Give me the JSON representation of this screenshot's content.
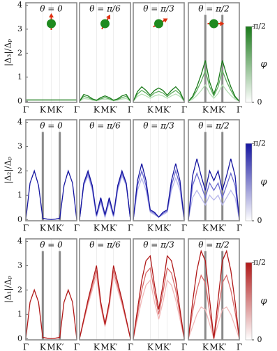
{
  "chart_data": [
    {
      "type": "line",
      "title": "θ = 0",
      "ylabel": "|Δ₃|/Δₚ",
      "ylim": [
        -0.05,
        4.1
      ],
      "yticks": [
        0,
        1,
        2,
        3,
        4
      ],
      "x": [
        0,
        0.083,
        0.167,
        0.25,
        0.333,
        0.417,
        0.5,
        0.583,
        0.667,
        0.75,
        0.833,
        0.917,
        1
      ],
      "xlim": [
        0,
        1
      ],
      "xticks": [
        {
          "value": 0,
          "label": "Γ"
        },
        {
          "value": 0.333,
          "label": "K"
        },
        {
          "value": 0.5,
          "label": "M"
        },
        {
          "value": 0.667,
          "label": "K′"
        },
        {
          "value": 1,
          "label": "Γ"
        }
      ],
      "series": [
        {
          "color": "#1a7a1a",
          "values": [
            0.05,
            0.05,
            0.05,
            0.05,
            0.05,
            0.05,
            0.05,
            0.05,
            0.05,
            0.05,
            0.05,
            0.05,
            0.05
          ]
        }
      ]
    },
    {
      "type": "line",
      "title": "θ = π/6",
      "ylim": [
        -0.05,
        4.1
      ],
      "x": [
        0,
        0.083,
        0.167,
        0.25,
        0.333,
        0.417,
        0.5,
        0.583,
        0.667,
        0.75,
        0.833,
        0.917,
        1
      ],
      "xlim": [
        0,
        1
      ],
      "xticks": [
        {
          "value": 0.333,
          "label": "K"
        },
        {
          "value": 0.5,
          "label": "M"
        },
        {
          "value": 0.667,
          "label": "K′"
        },
        {
          "value": 1,
          "label": "Γ"
        }
      ],
      "series": [
        {
          "color": "#b5deb5",
          "values": [
            0,
            0.11,
            0.09,
            0.04,
            0.02,
            0.06,
            0.09,
            0.06,
            0.02,
            0.04,
            0.09,
            0.11,
            0
          ]
        },
        {
          "color": "#5fae5f",
          "values": [
            0,
            0.2,
            0.15,
            0.07,
            0.03,
            0.1,
            0.15,
            0.1,
            0.03,
            0.07,
            0.15,
            0.2,
            0
          ]
        },
        {
          "color": "#1a7a1a",
          "values": [
            0,
            0.28,
            0.22,
            0.1,
            0.04,
            0.15,
            0.22,
            0.15,
            0.04,
            0.1,
            0.22,
            0.28,
            0
          ]
        }
      ]
    },
    {
      "type": "line",
      "title": "θ = π/3",
      "ylim": [
        -0.05,
        4.1
      ],
      "x": [
        0,
        0.083,
        0.167,
        0.25,
        0.333,
        0.417,
        0.5,
        0.583,
        0.667,
        0.75,
        0.833,
        0.917,
        1
      ],
      "xlim": [
        0,
        1
      ],
      "xticks": [
        {
          "value": 0.333,
          "label": "K"
        },
        {
          "value": 0.5,
          "label": "M"
        },
        {
          "value": 0.667,
          "label": "K′"
        },
        {
          "value": 1,
          "label": "Γ"
        }
      ],
      "series": [
        {
          "color": "#b5deb5",
          "values": [
            0,
            0.2,
            0.3,
            0.22,
            0.12,
            0.22,
            0.27,
            0.22,
            0.12,
            0.22,
            0.3,
            0.2,
            0
          ]
        },
        {
          "color": "#5fae5f",
          "values": [
            0,
            0.3,
            0.45,
            0.34,
            0.19,
            0.34,
            0.41,
            0.34,
            0.19,
            0.34,
            0.45,
            0.3,
            0
          ]
        },
        {
          "color": "#1a7a1a",
          "values": [
            0,
            0.4,
            0.6,
            0.45,
            0.25,
            0.45,
            0.55,
            0.45,
            0.25,
            0.45,
            0.6,
            0.4,
            0
          ]
        }
      ]
    },
    {
      "type": "line",
      "title": "θ = π/2",
      "ylim": [
        -0.05,
        4.1
      ],
      "vlines": [
        0.333,
        0.667
      ],
      "x": [
        0,
        0.083,
        0.167,
        0.25,
        0.333,
        0.417,
        0.5,
        0.583,
        0.667,
        0.75,
        0.833,
        0.917,
        1
      ],
      "xlim": [
        0,
        1
      ],
      "xticks": [
        {
          "value": 0.333,
          "label": "K"
        },
        {
          "value": 0.5,
          "label": "M"
        },
        {
          "value": 0.667,
          "label": "K′"
        },
        {
          "value": 1,
          "label": "Γ"
        }
      ],
      "series": [
        {
          "color": "#b5deb5",
          "values": [
            0,
            0.08,
            0.24,
            0.44,
            0.68,
            0.32,
            0.12,
            0.32,
            0.68,
            0.44,
            0.24,
            0.08,
            0
          ]
        },
        {
          "color": "#5fae5f",
          "values": [
            0,
            0.15,
            0.45,
            0.82,
            1.27,
            0.6,
            0.22,
            0.6,
            1.27,
            0.82,
            0.45,
            0.15,
            0
          ]
        },
        {
          "color": "#1a7a1a",
          "values": [
            0,
            0.2,
            0.6,
            1.1,
            1.7,
            0.8,
            0.3,
            0.8,
            1.7,
            1.1,
            0.6,
            0.2,
            0
          ]
        }
      ],
      "colorbar": {
        "label": "φ",
        "lim": [
          0,
          1.5708
        ],
        "ticks": [
          0,
          {
            "value": 1.5708,
            "label": "π/2"
          }
        ],
        "color": "#1a7a1a"
      }
    },
    {
      "type": "line",
      "title": "θ = 0",
      "ylabel": "|Δ₂|/Δₚ",
      "ylim": [
        -0.05,
        4.1
      ],
      "yticks": [
        0,
        1,
        2,
        3,
        4
      ],
      "vlines": [
        0.333,
        0.667
      ],
      "x": [
        0,
        0.083,
        0.167,
        0.25,
        0.333,
        0.417,
        0.5,
        0.583,
        0.667,
        0.75,
        0.833,
        0.917,
        1
      ],
      "xlim": [
        0,
        1
      ],
      "xticks": [
        {
          "value": 0,
          "label": "Γ"
        },
        {
          "value": 0.333,
          "label": "K"
        },
        {
          "value": 0.5,
          "label": "M"
        },
        {
          "value": 0.667,
          "label": "K′"
        },
        {
          "value": 1,
          "label": "Γ"
        }
      ],
      "series": [
        {
          "color": "#1515a0",
          "values": [
            0,
            1.5,
            2,
            1.4,
            0.05,
            0.02,
            0,
            0.02,
            0.05,
            1.4,
            2,
            1.5,
            0
          ]
        }
      ]
    },
    {
      "type": "line",
      "title": "θ = π/6",
      "ylim": [
        -0.05,
        4.1
      ],
      "x": [
        0,
        0.083,
        0.167,
        0.25,
        0.333,
        0.417,
        0.5,
        0.583,
        0.667,
        0.75,
        0.833,
        0.917,
        1
      ],
      "xlim": [
        0,
        1
      ],
      "xticks": [
        {
          "value": 0.333,
          "label": "K"
        },
        {
          "value": 0.5,
          "label": "M"
        },
        {
          "value": 0.667,
          "label": "K′"
        },
        {
          "value": 1,
          "label": "Γ"
        }
      ],
      "series": [
        {
          "color": "#b8b8ec",
          "values": [
            0,
            1.4,
            1.8,
            1.2,
            0.1,
            0.7,
            0.1,
            0.7,
            0.1,
            1.2,
            1.8,
            1.4,
            0
          ]
        },
        {
          "color": "#6a6ad0",
          "values": [
            0,
            1.45,
            1.9,
            1.3,
            0.15,
            0.8,
            0.15,
            0.8,
            0.15,
            1.3,
            1.9,
            1.45,
            0
          ]
        },
        {
          "color": "#1515a0",
          "values": [
            0,
            1.5,
            2,
            1.4,
            0.2,
            0.9,
            0.2,
            0.9,
            0.2,
            1.4,
            2,
            1.5,
            0
          ]
        }
      ]
    },
    {
      "type": "line",
      "title": "θ = π/3",
      "ylim": [
        -0.05,
        4.1
      ],
      "x": [
        0,
        0.083,
        0.167,
        0.25,
        0.333,
        0.417,
        0.5,
        0.583,
        0.667,
        0.75,
        0.833,
        0.917,
        1
      ],
      "xlim": [
        0,
        1
      ],
      "xticks": [
        {
          "value": 0.333,
          "label": "K"
        },
        {
          "value": 0.5,
          "label": "M"
        },
        {
          "value": 0.667,
          "label": "K′"
        },
        {
          "value": 1,
          "label": "Γ"
        }
      ],
      "series": [
        {
          "color": "#b8b8ec",
          "values": [
            0,
            1.2,
            1.7,
            1.2,
            0.3,
            0.2,
            0.1,
            0.2,
            0.3,
            1.2,
            1.7,
            1.2,
            0
          ]
        },
        {
          "color": "#6a6ad0",
          "values": [
            0,
            1.4,
            2.0,
            1.4,
            0.35,
            0.25,
            0.1,
            0.25,
            0.35,
            1.4,
            2.0,
            1.4,
            0
          ]
        },
        {
          "color": "#1515a0",
          "values": [
            0,
            1.6,
            2.3,
            1.6,
            0.4,
            0.3,
            0.1,
            0.3,
            0.4,
            1.6,
            2.3,
            1.6,
            0
          ]
        }
      ]
    },
    {
      "type": "line",
      "title": "θ = π/2",
      "ylim": [
        -0.05,
        4.1
      ],
      "vlines": [
        0.333,
        0.667
      ],
      "x": [
        0,
        0.083,
        0.167,
        0.25,
        0.333,
        0.417,
        0.5,
        0.583,
        0.667,
        0.75,
        0.833,
        0.917,
        1
      ],
      "xlim": [
        0,
        1
      ],
      "xticks": [
        {
          "value": 0.333,
          "label": "K"
        },
        {
          "value": 0.5,
          "label": "M"
        },
        {
          "value": 0.667,
          "label": "K′"
        },
        {
          "value": 1,
          "label": "Γ"
        }
      ],
      "series": [
        {
          "color": "#b8b8ec",
          "values": [
            0,
            0.9,
            1.2,
            0.9,
            0.6,
            1.0,
            0.8,
            1.0,
            0.6,
            0.9,
            1.2,
            0.9,
            0
          ]
        },
        {
          "color": "#6a6ad0",
          "values": [
            0,
            1.4,
            1.9,
            1.4,
            0.9,
            1.5,
            1.2,
            1.5,
            0.9,
            1.4,
            1.9,
            1.4,
            0
          ]
        },
        {
          "color": "#1515a0",
          "values": [
            0,
            1.8,
            2.5,
            1.8,
            1.2,
            2.0,
            1.6,
            2.0,
            1.2,
            1.8,
            2.5,
            1.8,
            0
          ]
        }
      ],
      "colorbar": {
        "label": "φ",
        "lim": [
          0,
          1.5708
        ],
        "ticks": [
          0,
          {
            "value": 1.5708,
            "label": "π/2"
          }
        ],
        "color": "#1515a0"
      }
    },
    {
      "type": "line",
      "title": "θ = 0",
      "ylabel": "|Δ₁|/Δₚ",
      "ylim": [
        -0.05,
        4.1
      ],
      "yticks": [
        0,
        1,
        2,
        3,
        4
      ],
      "vlines": [
        0.333,
        0.667
      ],
      "x": [
        0,
        0.083,
        0.167,
        0.25,
        0.333,
        0.417,
        0.5,
        0.583,
        0.667,
        0.75,
        0.833,
        0.917,
        1
      ],
      "xlim": [
        0,
        1
      ],
      "xticks": [
        {
          "value": 0,
          "label": "Γ"
        },
        {
          "value": 0.333,
          "label": "K"
        },
        {
          "value": 0.5,
          "label": "M"
        },
        {
          "value": 0.667,
          "label": "K′"
        },
        {
          "value": 1,
          "label": "Γ"
        }
      ],
      "series": [
        {
          "color": "#b01818",
          "values": [
            0,
            1.5,
            2,
            1.5,
            0.05,
            0.02,
            0,
            0.02,
            0.05,
            1.5,
            2,
            1.5,
            0
          ]
        }
      ]
    },
    {
      "type": "line",
      "title": "θ = π/6",
      "ylim": [
        -0.05,
        4.1
      ],
      "x": [
        0,
        0.083,
        0.167,
        0.25,
        0.333,
        0.417,
        0.5,
        0.583,
        0.667,
        0.75,
        0.833,
        0.917,
        1
      ],
      "xlim": [
        0,
        1
      ],
      "xticks": [
        {
          "value": 0.333,
          "label": "K"
        },
        {
          "value": 0.5,
          "label": "M"
        },
        {
          "value": 0.667,
          "label": "K′"
        },
        {
          "value": 1,
          "label": "Γ"
        }
      ],
      "series": [
        {
          "color": "#f0b8b8",
          "values": [
            0,
            0.7,
            1.4,
            2.0,
            2.6,
            1.3,
            0.5,
            1.3,
            2.6,
            2.0,
            1.4,
            0.7,
            0
          ]
        },
        {
          "color": "#d86a6a",
          "values": [
            0,
            0.75,
            1.5,
            2.15,
            2.8,
            1.4,
            0.55,
            1.4,
            2.8,
            2.15,
            1.5,
            0.75,
            0
          ]
        },
        {
          "color": "#b01818",
          "values": [
            0,
            0.8,
            1.6,
            2.3,
            3.0,
            1.5,
            0.6,
            1.5,
            3.0,
            2.3,
            1.6,
            0.8,
            0
          ]
        }
      ]
    },
    {
      "type": "line",
      "title": "θ = π/3",
      "ylim": [
        -0.05,
        4.1
      ],
      "x": [
        0,
        0.083,
        0.167,
        0.25,
        0.333,
        0.417,
        0.5,
        0.583,
        0.667,
        0.75,
        0.833,
        0.917,
        1
      ],
      "xlim": [
        0,
        1
      ],
      "xticks": [
        {
          "value": 0.333,
          "label": "K"
        },
        {
          "value": 0.5,
          "label": "M"
        },
        {
          "value": 0.667,
          "label": "K′"
        },
        {
          "value": 1,
          "label": "Γ"
        }
      ],
      "series": [
        {
          "color": "#f0b8b8",
          "values": [
            0,
            0.8,
            1.6,
            2.2,
            2.4,
            1.5,
            0.8,
            1.5,
            2.4,
            2.2,
            1.6,
            0.8,
            0
          ]
        },
        {
          "color": "#d86a6a",
          "values": [
            0,
            1.0,
            2.0,
            2.7,
            2.9,
            1.9,
            1.0,
            1.9,
            2.9,
            2.7,
            2.0,
            1.0,
            0
          ]
        },
        {
          "color": "#b01818",
          "values": [
            0,
            1.2,
            2.4,
            3.2,
            3.4,
            2.2,
            1.2,
            2.2,
            3.4,
            3.2,
            2.4,
            1.2,
            0
          ]
        }
      ]
    },
    {
      "type": "line",
      "title": "θ = π/2",
      "ylim": [
        -0.05,
        4.1
      ],
      "vlines": [
        0.333,
        0.667
      ],
      "x": [
        0,
        0.083,
        0.167,
        0.25,
        0.333,
        0.417,
        0.5,
        0.583,
        0.667,
        0.75,
        0.833,
        0.917,
        1
      ],
      "xlim": [
        0,
        1
      ],
      "xticks": [
        {
          "value": 0.333,
          "label": "K"
        },
        {
          "value": 0.5,
          "label": "M"
        },
        {
          "value": 0.667,
          "label": "K′"
        },
        {
          "value": 1,
          "label": "Γ"
        }
      ],
      "series": [
        {
          "color": "#f0b8b8",
          "values": [
            0,
            0.5,
            1.0,
            1.3,
            1.2,
            0.6,
            0,
            0.6,
            1.2,
            1.3,
            1.0,
            0.5,
            0
          ]
        },
        {
          "color": "#d86a6a",
          "values": [
            0,
            1.1,
            2.0,
            2.6,
            2.3,
            1.1,
            0,
            1.1,
            2.3,
            2.6,
            2.0,
            1.1,
            0
          ]
        },
        {
          "color": "#b01818",
          "values": [
            0,
            1.5,
            2.8,
            3.6,
            3.2,
            1.6,
            0,
            1.6,
            3.2,
            3.6,
            2.8,
            1.5,
            0
          ]
        }
      ],
      "colorbar": {
        "label": "φ",
        "lim": [
          0,
          1.5708
        ],
        "ticks": [
          0,
          {
            "value": 1.5708,
            "label": "π/2"
          }
        ],
        "color": "#b01818"
      }
    }
  ]
}
